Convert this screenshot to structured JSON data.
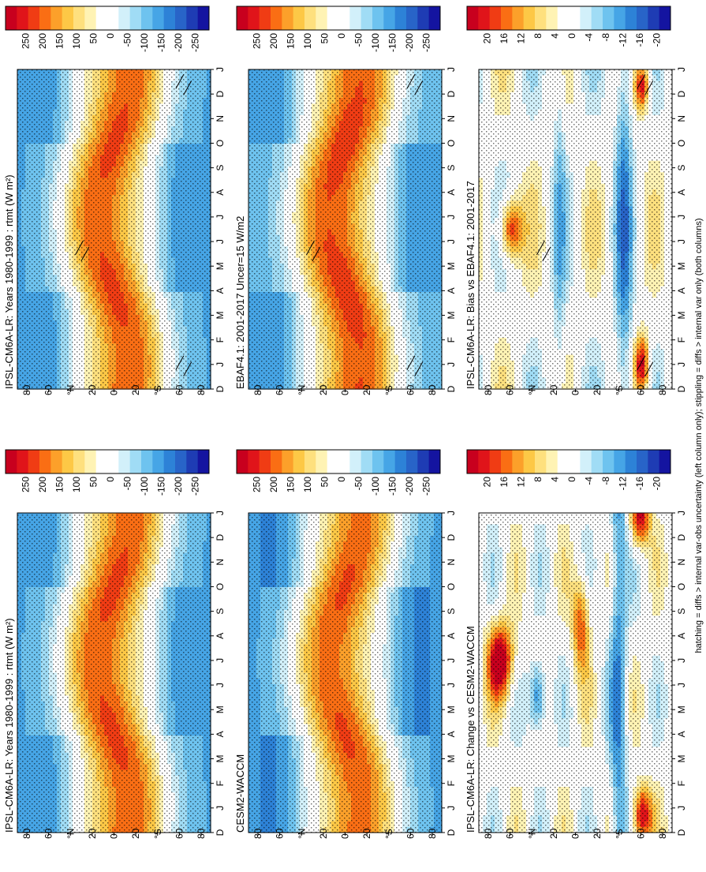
{
  "footer": "hatching = diffs > internal var-obs uncertainty (left column only); stippling = diffs > internal var only (both columns)",
  "chart_data": [
    {
      "type": "heatmap",
      "title": "IPSL-CM6A-LR: Years 1980-1999 : rtmt (W m²)",
      "months": [
        "D",
        "J",
        "F",
        "M",
        "A",
        "M",
        "J",
        "J",
        "A",
        "S",
        "O",
        "N",
        "D",
        "J"
      ],
      "lat_ticks": [
        "80",
        "60",
        "°N",
        "20",
        "0",
        "20",
        "°S",
        "60",
        "80"
      ],
      "field": "rtmt",
      "scale": 250,
      "colorbar": {
        "ticks": [
          "250",
          "200",
          "150",
          "100",
          "50",
          "0",
          "-50",
          "-100",
          "-150",
          "-200",
          "-250"
        ]
      },
      "hatching": true
    },
    {
      "type": "heatmap",
      "title": "EBAF4.1: 2001-2017 Uncer=15 W/m2",
      "months": [
        "D",
        "J",
        "F",
        "M",
        "A",
        "M",
        "J",
        "J",
        "A",
        "S",
        "O",
        "N",
        "D",
        "J"
      ],
      "lat_ticks": [
        "80",
        "60",
        "°N",
        "20",
        "0",
        "20",
        "°S",
        "60",
        "80"
      ],
      "field": "rtmt",
      "scale": 250,
      "colorbar": {
        "ticks": [
          "250",
          "200",
          "150",
          "100",
          "50",
          "0",
          "-50",
          "-100",
          "-150",
          "-200",
          "-250"
        ]
      },
      "hatching": true
    },
    {
      "type": "heatmap",
      "title": "IPSL-CM6A-LR: Bias vs EBAF4.1: 2001-2017",
      "months": [
        "D",
        "J",
        "F",
        "M",
        "A",
        "M",
        "J",
        "J",
        "A",
        "S",
        "O",
        "N",
        "D",
        "J"
      ],
      "lat_ticks": [
        "80",
        "60",
        "°N",
        "20",
        "0",
        "20",
        "°S",
        "60",
        "80"
      ],
      "field": "bias",
      "scale": 20,
      "colorbar": {
        "ticks": [
          "20",
          "16",
          "12",
          "8",
          "4",
          "0",
          "-4",
          "-8",
          "-12",
          "-16",
          "-20"
        ]
      },
      "hatching": true
    },
    {
      "type": "heatmap",
      "title": "IPSL-CM6A-LR: Years 1980-1999 : rtmt (W m²)",
      "months": [
        "D",
        "J",
        "F",
        "M",
        "A",
        "M",
        "J",
        "J",
        "A",
        "S",
        "O",
        "N",
        "D",
        "J"
      ],
      "lat_ticks": [
        "80",
        "60",
        "°N",
        "20",
        "0",
        "20",
        "°S",
        "60",
        "80"
      ],
      "field": "rtmt",
      "scale": 250,
      "colorbar": {
        "ticks": [
          "250",
          "200",
          "150",
          "100",
          "50",
          "0",
          "-50",
          "-100",
          "-150",
          "-200",
          "-250"
        ]
      },
      "hatching": false
    },
    {
      "type": "heatmap",
      "title": "CESM2-WACCM",
      "months": [
        "D",
        "J",
        "F",
        "M",
        "A",
        "M",
        "J",
        "J",
        "A",
        "S",
        "O",
        "N",
        "D",
        "J"
      ],
      "lat_ticks": [
        "80",
        "60",
        "°N",
        "20",
        "0",
        "20",
        "°S",
        "60",
        "80"
      ],
      "field": "rtmt",
      "scale": 250,
      "colorbar": {
        "ticks": [
          "250",
          "200",
          "150",
          "100",
          "50",
          "0",
          "-50",
          "-100",
          "-150",
          "-200",
          "-250"
        ]
      },
      "hatching": false
    },
    {
      "type": "heatmap",
      "title": "IPSL-CM6A-LR: Change vs CESM2-WACCM",
      "months": [
        "D",
        "J",
        "F",
        "M",
        "A",
        "M",
        "J",
        "J",
        "A",
        "S",
        "O",
        "N",
        "D",
        "J"
      ],
      "lat_ticks": [
        "80",
        "60",
        "°N",
        "20",
        "0",
        "20",
        "°S",
        "60",
        "80"
      ],
      "field": "change",
      "scale": 20,
      "colorbar": {
        "ticks": [
          "20",
          "16",
          "12",
          "8",
          "4",
          "0",
          "-4",
          "-8",
          "-12",
          "-16",
          "-20"
        ]
      },
      "hatching": false
    }
  ],
  "colors": [
    "#c8001e",
    "#e0141a",
    "#f03c14",
    "#fa6e14",
    "#fca02a",
    "#fdc846",
    "#fee07e",
    "#fff3b4",
    "#ffffff",
    "#ffffff",
    "#d2f0fa",
    "#a0dcf5",
    "#6ec3ef",
    "#46a5e6",
    "#2d82d7",
    "#2864c8",
    "#1e3cb4",
    "#1414a0"
  ]
}
